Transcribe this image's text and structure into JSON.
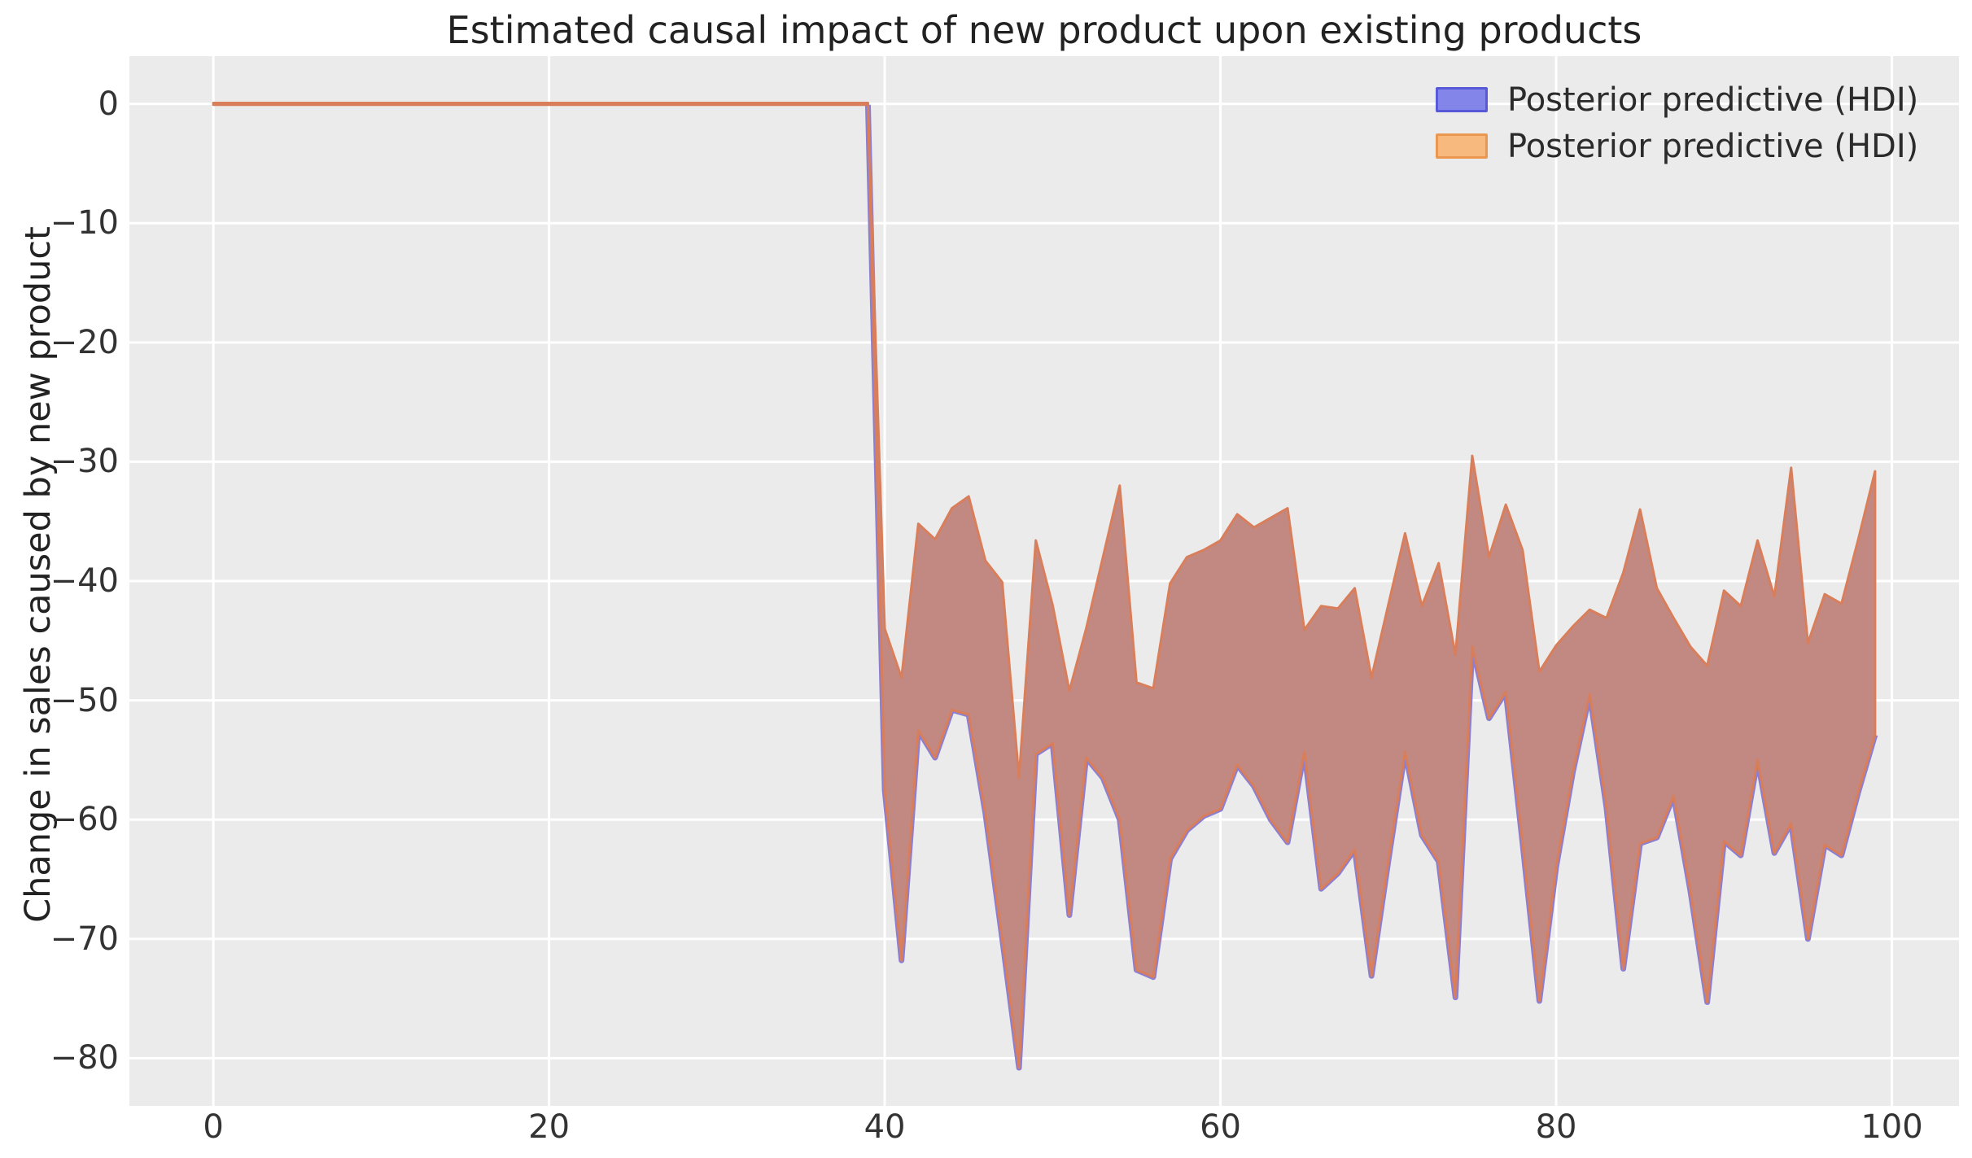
{
  "chart_data": {
    "type": "area",
    "title": "Estimated causal impact of new product upon existing products",
    "xlabel": "",
    "ylabel": "Change in sales caused by new product",
    "xlim": [
      -5,
      104
    ],
    "ylim": [
      -84,
      4
    ],
    "xticks": [
      0,
      20,
      40,
      60,
      80,
      100
    ],
    "yticks": [
      0,
      -10,
      -20,
      -30,
      -40,
      -50,
      -60,
      -70,
      -80
    ],
    "grid": true,
    "legend_position": "upper right",
    "legend": [
      {
        "label": "Posterior predictive (HDI)",
        "fill": "#8485e9",
        "edge": "#5759d9"
      },
      {
        "label": "Posterior predictive (HDI)",
        "fill": "#f8b97e",
        "edge": "#eb9750"
      }
    ],
    "pre_period": {
      "x_start": 0,
      "x_end": 39,
      "value": 0,
      "half_width": 0.08
    },
    "hdi_band": {
      "x_start": 40,
      "upper": [
        -44.0,
        -48.1,
        -35.2,
        -36.5,
        -33.9,
        -32.9,
        -38.3,
        -40.1,
        -56.5,
        -36.6,
        -42.0,
        -49.2,
        -44.0,
        -38.0,
        -32.0,
        -48.5,
        -49.0,
        -40.2,
        -38.0,
        -37.4,
        -36.6,
        -34.4,
        -35.5,
        -34.7,
        -33.9,
        -44.1,
        -42.1,
        -42.3,
        -40.6,
        -48.1,
        -42.0,
        -36.0,
        -42.1,
        -38.5,
        -46.2,
        -29.5,
        -38.0,
        -33.6,
        -37.4,
        -47.6,
        -45.4,
        -43.8,
        -42.4,
        -43.1,
        -39.3,
        -34.0,
        -40.6,
        -43.1,
        -45.5,
        -47.1,
        -40.8,
        -42.1,
        -36.6,
        -41.3,
        -30.5,
        -45.2,
        -41.1,
        -41.9,
        -36.5,
        -30.8
      ],
      "lower": [
        -57.5,
        -71.8,
        -52.5,
        -54.8,
        -50.8,
        -51.2,
        -59.5,
        -70.0,
        -80.8,
        -54.5,
        -53.6,
        -68.0,
        -54.8,
        -56.5,
        -60.0,
        -72.6,
        -73.2,
        -63.3,
        -60.9,
        -59.7,
        -59.1,
        -55.4,
        -57.2,
        -60.0,
        -61.9,
        -54.3,
        -65.8,
        -64.5,
        -62.5,
        -73.1,
        -63.5,
        -54.3,
        -61.3,
        -63.5,
        -74.9,
        -45.5,
        -51.5,
        -49.3,
        -62.0,
        -75.2,
        -64.0,
        -56.0,
        -49.5,
        -59.0,
        -72.5,
        -62.0,
        -61.5,
        -58.0,
        -66.0,
        -75.3,
        -61.8,
        -63.0,
        -55.0,
        -62.8,
        -60.3,
        -70.0,
        -62.1,
        -63.0,
        -57.7,
        -52.9
      ]
    },
    "colors": {
      "figure_bg": "#ffffff",
      "plot_bg": "#ebebeb",
      "grid": "#ffffff",
      "band_fill": "#c28983",
      "band_edge": "#d97e5b",
      "band_edge_lower": "#8b7fd4"
    }
  }
}
